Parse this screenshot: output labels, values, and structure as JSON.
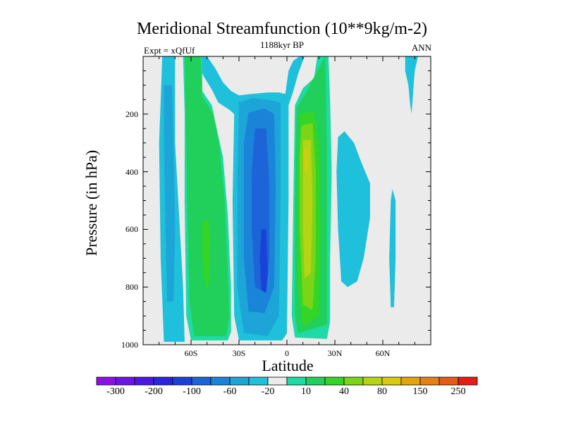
{
  "chart_data": {
    "type": "heatmap",
    "title": "Meridional Streamfunction (10**9kg/m-2)",
    "left_string": "Expt = xQfUf",
    "center_string": "1188kyr BP",
    "right_string": "ANN",
    "xlabel": "Latitude",
    "ylabel": "Pressure (in hPa)",
    "xlim": [
      -90,
      90
    ],
    "ylim": [
      1000,
      0
    ],
    "x_ticks": [
      {
        "value": -60,
        "label": "60S"
      },
      {
        "value": -30,
        "label": "30S"
      },
      {
        "value": 0,
        "label": "0"
      },
      {
        "value": 30,
        "label": "30N"
      },
      {
        "value": 60,
        "label": "60N"
      }
    ],
    "y_ticks": [
      {
        "value": 200,
        "label": "200"
      },
      {
        "value": 400,
        "label": "400"
      },
      {
        "value": 600,
        "label": "600"
      },
      {
        "value": 800,
        "label": "800"
      },
      {
        "value": 1000,
        "label": "1000"
      }
    ],
    "levels": [
      -300,
      -250,
      -200,
      -150,
      -100,
      -80,
      -60,
      -40,
      -20,
      -10,
      10,
      20,
      40,
      60,
      80,
      100,
      150,
      200,
      250,
      300
    ],
    "colorbar_labels": [
      {
        "value": -300,
        "label": "-300"
      },
      {
        "value": -200,
        "label": "-200"
      },
      {
        "value": -100,
        "label": "-100"
      },
      {
        "value": -60,
        "label": "-60"
      },
      {
        "value": -20,
        "label": "-20"
      },
      {
        "value": 10,
        "label": "10"
      },
      {
        "value": 40,
        "label": "40"
      },
      {
        "value": 80,
        "label": "80"
      },
      {
        "value": 150,
        "label": "150"
      },
      {
        "value": 250,
        "label": "250"
      }
    ],
    "colorbar_colors": [
      "#8f0fe9",
      "#6e14e7",
      "#4c18e1",
      "#2926db",
      "#1a42d8",
      "#1c64d8",
      "#1a84d9",
      "#1ea5d7",
      "#1fc0db",
      "#ebebeb",
      "#1fdaa4",
      "#20d05a",
      "#34d526",
      "#7ad517",
      "#b5d514",
      "#d9ca0d",
      "#e5a40e",
      "#e48016",
      "#e55a17",
      "#e71c12"
    ],
    "background_color": "#ebebeb",
    "contour_regions": [
      {
        "level": -20,
        "color": "#1fc0db",
        "points": [
          [
            -78,
            0
          ],
          [
            -70,
            0
          ],
          [
            -70,
            300
          ],
          [
            -65,
            800
          ],
          [
            -64,
            990
          ],
          [
            -77,
            990
          ],
          [
            -79,
            700
          ],
          [
            -80,
            300
          ]
        ]
      },
      {
        "level": -40,
        "color": "#1ea5d7",
        "points": [
          [
            -77,
            100
          ],
          [
            -72,
            100
          ],
          [
            -71,
            300
          ],
          [
            -70,
            600
          ],
          [
            -71,
            850
          ],
          [
            -75,
            850
          ],
          [
            -76,
            600
          ],
          [
            -77,
            300
          ]
        ]
      },
      {
        "level": -20,
        "color": "#1fc0db",
        "points": [
          [
            -56,
            0
          ],
          [
            -50,
            0
          ],
          [
            -45,
            40
          ],
          [
            -40,
            90
          ],
          [
            -35,
            120
          ],
          [
            -30,
            135
          ],
          [
            -22,
            130
          ],
          [
            -12,
            125
          ],
          [
            -5,
            125
          ],
          [
            -1,
            130
          ],
          [
            1,
            50
          ],
          [
            4,
            15
          ],
          [
            8,
            0
          ],
          [
            11,
            0
          ],
          [
            7,
            60
          ],
          [
            4,
            120
          ],
          [
            1,
            170
          ],
          [
            1,
            500
          ],
          [
            0,
            960
          ],
          [
            -3,
            985
          ],
          [
            -30,
            985
          ],
          [
            -33,
            900
          ],
          [
            -34,
            500
          ],
          [
            -33,
            200
          ],
          [
            -36,
            185
          ],
          [
            -43,
            160
          ],
          [
            -47,
            115
          ],
          [
            -52,
            70
          ],
          [
            -55,
            30
          ]
        ]
      },
      {
        "level": -40,
        "color": "#1ea5d7",
        "points": [
          [
            -30,
            160
          ],
          [
            -22,
            145
          ],
          [
            -12,
            150
          ],
          [
            -4,
            160
          ],
          [
            -4,
            500
          ],
          [
            -5,
            900
          ],
          [
            -12,
            970
          ],
          [
            -27,
            960
          ],
          [
            -31,
            800
          ],
          [
            -31,
            400
          ]
        ]
      },
      {
        "level": -60,
        "color": "#1a84d9",
        "points": [
          [
            -24,
            195
          ],
          [
            -14,
            180
          ],
          [
            -8,
            200
          ],
          [
            -7,
            450
          ],
          [
            -8,
            800
          ],
          [
            -14,
            890
          ],
          [
            -24,
            885
          ],
          [
            -27,
            700
          ],
          [
            -27,
            300
          ]
        ]
      },
      {
        "level": -80,
        "color": "#1c64d8",
        "points": [
          [
            -20,
            250
          ],
          [
            -13,
            250
          ],
          [
            -11,
            450
          ],
          [
            -11,
            700
          ],
          [
            -13,
            820
          ],
          [
            -20,
            800
          ],
          [
            -22,
            600
          ],
          [
            -22,
            400
          ]
        ]
      },
      {
        "level": -100,
        "color": "#1a42d8",
        "points": [
          [
            -16,
            600
          ],
          [
            -13,
            600
          ],
          [
            -12,
            750
          ],
          [
            -13,
            820
          ],
          [
            -16,
            810
          ],
          [
            -17,
            700
          ]
        ]
      },
      {
        "level": 10,
        "color": "#1fdaa4",
        "points": [
          [
            -65,
            0
          ],
          [
            -53,
            0
          ],
          [
            -53,
            120
          ],
          [
            -47,
            170
          ],
          [
            -44,
            250
          ],
          [
            -40,
            350
          ],
          [
            -37,
            550
          ],
          [
            -35,
            800
          ],
          [
            -35,
            955
          ],
          [
            -37,
            985
          ],
          [
            -60,
            985
          ],
          [
            -63,
            900
          ],
          [
            -64,
            500
          ],
          [
            -64,
            200
          ]
        ]
      },
      {
        "level": 20,
        "color": "#20d05a",
        "points": [
          [
            -64,
            0
          ],
          [
            -54,
            0
          ],
          [
            -53,
            140
          ],
          [
            -46,
            200
          ],
          [
            -42,
            320
          ],
          [
            -39,
            500
          ],
          [
            -37,
            750
          ],
          [
            -36,
            900
          ],
          [
            -38,
            970
          ],
          [
            -58,
            970
          ],
          [
            -61,
            850
          ],
          [
            -62,
            600
          ],
          [
            -63,
            300
          ]
        ]
      },
      {
        "level": 40,
        "color": "#34d526",
        "points": [
          [
            -53,
            570
          ],
          [
            -49,
            570
          ],
          [
            -48,
            650
          ],
          [
            -49,
            800
          ],
          [
            -51,
            800
          ],
          [
            -53,
            700
          ]
        ]
      },
      {
        "level": 10,
        "color": "#1fdaa4",
        "points": [
          [
            19,
            0
          ],
          [
            26,
            0
          ],
          [
            27,
            150
          ],
          [
            28,
            400
          ],
          [
            27,
            700
          ],
          [
            27,
            920
          ],
          [
            25,
            980
          ],
          [
            5,
            975
          ],
          [
            3,
            900
          ],
          [
            4,
            500
          ],
          [
            5,
            170
          ],
          [
            10,
            110
          ],
          [
            17,
            75
          ]
        ]
      },
      {
        "level": 20,
        "color": "#20d05a",
        "points": [
          [
            18,
            60
          ],
          [
            24,
            0
          ],
          [
            25,
            300
          ],
          [
            25,
            600
          ],
          [
            25,
            930
          ],
          [
            7,
            960
          ],
          [
            5,
            900
          ],
          [
            5,
            500
          ],
          [
            6,
            180
          ],
          [
            12,
            125
          ]
        ]
      },
      {
        "level": 40,
        "color": "#34d526",
        "points": [
          [
            8,
            200
          ],
          [
            17,
            190
          ],
          [
            20,
            300
          ],
          [
            21,
            600
          ],
          [
            20,
            900
          ],
          [
            10,
            940
          ],
          [
            7,
            800
          ],
          [
            7,
            400
          ]
        ]
      },
      {
        "level": 60,
        "color": "#7ad517",
        "points": [
          [
            9,
            240
          ],
          [
            16,
            230
          ],
          [
            18,
            400
          ],
          [
            18,
            700
          ],
          [
            16,
            880
          ],
          [
            10,
            860
          ],
          [
            8,
            600
          ],
          [
            8,
            350
          ]
        ]
      },
      {
        "level": 80,
        "color": "#b5d514",
        "points": [
          [
            10,
            290
          ],
          [
            15,
            290
          ],
          [
            16,
            500
          ],
          [
            15,
            750
          ],
          [
            11,
            770
          ],
          [
            10,
            600
          ],
          [
            10,
            400
          ]
        ]
      },
      {
        "level": 100,
        "color": "#d9ca0d",
        "points": [
          [
            11,
            320
          ],
          [
            13,
            320
          ],
          [
            13,
            390
          ],
          [
            12,
            410
          ],
          [
            11,
            380
          ]
        ]
      },
      {
        "level": -20,
        "color": "#1fc0db",
        "points": [
          [
            32,
            280
          ],
          [
            36,
            260
          ],
          [
            42,
            300
          ],
          [
            46,
            360
          ],
          [
            52,
            440
          ],
          [
            52,
            560
          ],
          [
            48,
            700
          ],
          [
            44,
            780
          ],
          [
            38,
            800
          ],
          [
            34,
            780
          ],
          [
            32,
            600
          ],
          [
            31,
            400
          ]
        ]
      },
      {
        "level": -20,
        "color": "#1fc0db",
        "points": [
          [
            66,
            460
          ],
          [
            68,
            500
          ],
          [
            68,
            700
          ],
          [
            67,
            870
          ],
          [
            65,
            870
          ],
          [
            64,
            700
          ],
          [
            65,
            500
          ]
        ]
      },
      {
        "level": -20,
        "color": "#1fc0db",
        "points": [
          [
            74,
            0
          ],
          [
            82,
            0
          ],
          [
            80,
            50
          ],
          [
            79,
            120
          ],
          [
            78,
            200
          ],
          [
            77,
            160
          ],
          [
            76,
            100
          ],
          [
            74,
            50
          ]
        ]
      }
    ]
  }
}
